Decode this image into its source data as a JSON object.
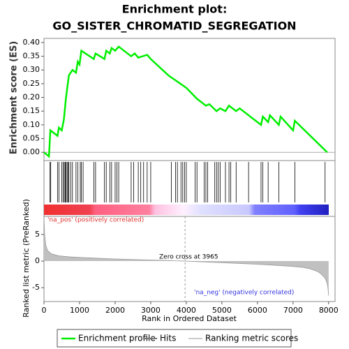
{
  "chart_data": {
    "type": "line",
    "title": "Enrichment plot:",
    "subtitle": "GO_SISTER_CHROMATID_SEGREGATION",
    "y_label": "Enrichment score (ES)",
    "y2_label": "Ranked list metric (PreRanked)",
    "x_label": "Rank in Ordered Dataset",
    "annotations": [
      "'na_pos' (positively correlated)",
      "Zero cross at 3965",
      "'na_neg' (negatively correlated)"
    ],
    "zero_cross": 3965,
    "xlim": [
      0,
      8180
    ],
    "xticks": [
      0,
      1000,
      2000,
      3000,
      4000,
      5000,
      6000,
      7000,
      8000
    ],
    "ylim": [
      -0.03,
      0.415
    ],
    "yticks": [
      {
        "value": 0,
        "label": "0.00"
      },
      {
        "value": 0.05,
        "label": "0.05"
      },
      {
        "value": 0.1,
        "label": "0.10"
      },
      {
        "value": 0.15,
        "label": "0.15"
      },
      {
        "value": 0.2,
        "label": "0.20"
      },
      {
        "value": 0.25,
        "label": "0.25"
      },
      {
        "value": 0.3,
        "label": "0.30"
      },
      {
        "value": 0.35,
        "label": "0.35"
      },
      {
        "value": 0.4,
        "label": "0.40"
      }
    ],
    "y2lim": [
      -7.6,
      8.4
    ],
    "y2ticks": [
      -5,
      0,
      5
    ],
    "series": [
      {
        "name": "Enrichment profile",
        "color": "#00ee00",
        "x": [
          0,
          140,
          180,
          380,
          420,
          500,
          560,
          620,
          700,
          800,
          900,
          950,
          1000,
          1050,
          1400,
          1450,
          1700,
          1750,
          1850,
          1900,
          2000,
          2100,
          2450,
          2550,
          2650,
          2900,
          3000,
          3500,
          4000,
          4300,
          4550,
          4650,
          4850,
          4950,
          5100,
          5200,
          5400,
          5500,
          5800,
          6100,
          6150,
          6300,
          6350,
          6600,
          6650,
          7000,
          7050,
          7960
        ],
        "values": [
          0,
          -0.015,
          0.08,
          0.06,
          0.09,
          0.08,
          0.12,
          0.2,
          0.28,
          0.3,
          0.29,
          0.33,
          0.32,
          0.37,
          0.34,
          0.36,
          0.34,
          0.37,
          0.36,
          0.38,
          0.37,
          0.385,
          0.35,
          0.36,
          0.345,
          0.355,
          0.34,
          0.28,
          0.235,
          0.195,
          0.17,
          0.175,
          0.15,
          0.16,
          0.15,
          0.17,
          0.15,
          0.16,
          0.13,
          0.1,
          0.13,
          0.11,
          0.135,
          0.1,
          0.13,
          0.08,
          0.115,
          0
        ]
      },
      {
        "name": "Hits",
        "color": "#000000",
        "x": [
          170,
          190,
          380,
          420,
          500,
          540,
          570,
          600,
          620,
          650,
          680,
          700,
          750,
          800,
          900,
          950,
          1020,
          1050,
          1100,
          1400,
          1450,
          1700,
          1750,
          1850,
          1900,
          2000,
          2050,
          2100,
          2450,
          2520,
          2650,
          2720,
          2800,
          2900,
          3000,
          3580,
          3700,
          3750,
          3850,
          3900,
          3950,
          4000,
          4250,
          4300,
          4500,
          4550,
          4600,
          4800,
          4850,
          4900,
          4950,
          5100,
          5200,
          5250,
          5400,
          5750,
          6100,
          6150,
          6300,
          6600,
          7050,
          7900
        ]
      },
      {
        "name": "Ranking metric scores",
        "color": "#c0c0c0",
        "axis": "y2",
        "x": [
          0,
          20,
          50,
          100,
          200,
          400,
          700,
          1000,
          1500,
          2000,
          2500,
          3000,
          3500,
          3965,
          4500,
          5000,
          5500,
          6000,
          6500,
          7000,
          7300,
          7500,
          7700,
          7800,
          7900,
          7950,
          7980,
          8000
        ],
        "values": [
          8,
          5,
          3,
          2,
          1.4,
          1,
          0.8,
          0.7,
          0.55,
          0.4,
          0.3,
          0.2,
          0.1,
          0,
          -0.15,
          -0.3,
          -0.45,
          -0.6,
          -0.8,
          -1,
          -1.2,
          -1.5,
          -2,
          -2.5,
          -3.2,
          -4,
          -5,
          -6.5
        ]
      }
    ]
  }
}
